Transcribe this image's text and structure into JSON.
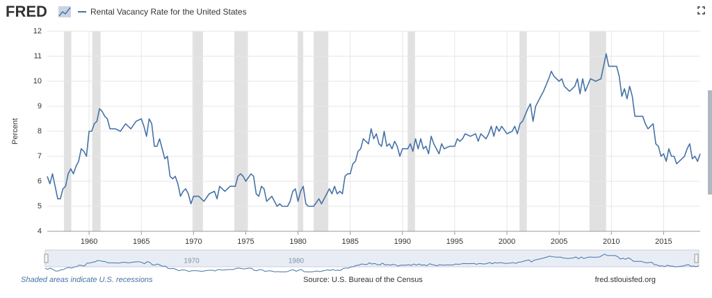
{
  "logo": "FRED",
  "chart_data": {
    "type": "line",
    "legend": "Rental Vacancy Rate for the United States",
    "ylabel": "Percent",
    "x": [
      1956.0,
      1956.25,
      1956.5,
      1956.75,
      1957.0,
      1957.25,
      1957.5,
      1957.75,
      1958.0,
      1958.25,
      1958.5,
      1958.75,
      1959.0,
      1959.25,
      1959.5,
      1959.75,
      1960.0,
      1960.25,
      1960.5,
      1960.75,
      1961.0,
      1961.25,
      1961.5,
      1961.75,
      1962.0,
      1962.5,
      1963.0,
      1963.5,
      1964.0,
      1964.5,
      1965.0,
      1965.25,
      1965.5,
      1965.75,
      1966.0,
      1966.25,
      1966.5,
      1966.75,
      1967.0,
      1967.25,
      1967.5,
      1967.75,
      1968.0,
      1968.25,
      1968.5,
      1968.75,
      1969.0,
      1969.25,
      1969.5,
      1969.75,
      1970.0,
      1970.5,
      1971.0,
      1971.5,
      1972.0,
      1972.25,
      1972.5,
      1973.0,
      1973.5,
      1974.0,
      1974.25,
      1974.5,
      1974.75,
      1975.0,
      1975.5,
      1975.75,
      1976.0,
      1976.25,
      1976.5,
      1976.75,
      1977.0,
      1977.5,
      1978.0,
      1978.25,
      1978.5,
      1979.0,
      1979.25,
      1979.5,
      1979.75,
      1980.0,
      1980.25,
      1980.5,
      1980.75,
      1981.0,
      1981.5,
      1982.0,
      1982.25,
      1982.5,
      1983.0,
      1983.25,
      1983.5,
      1983.75,
      1984.0,
      1984.25,
      1984.5,
      1984.75,
      1985.0,
      1985.25,
      1985.5,
      1985.75,
      1986.0,
      1986.25,
      1986.5,
      1986.75,
      1987.0,
      1987.25,
      1987.5,
      1987.75,
      1988.0,
      1988.25,
      1988.5,
      1988.75,
      1989.0,
      1989.25,
      1989.5,
      1989.75,
      1990.0,
      1990.5,
      1990.75,
      1991.0,
      1991.25,
      1991.5,
      1991.75,
      1992.0,
      1992.25,
      1992.5,
      1992.75,
      1993.0,
      1993.25,
      1993.5,
      1993.75,
      1994.0,
      1994.5,
      1995.0,
      1995.25,
      1995.5,
      1995.75,
      1996.0,
      1996.5,
      1997.0,
      1997.25,
      1997.5,
      1998.0,
      1998.25,
      1998.5,
      1998.75,
      1999.0,
      1999.25,
      1999.5,
      2000.0,
      2000.5,
      2000.75,
      2001.0,
      2001.25,
      2001.5,
      2002.0,
      2002.25,
      2002.5,
      2002.75,
      2003.0,
      2003.5,
      2004.0,
      2004.25,
      2004.5,
      2005.0,
      2005.25,
      2005.5,
      2006.0,
      2006.5,
      2006.75,
      2007.0,
      2007.25,
      2007.5,
      2008.0,
      2008.5,
      2009.0,
      2009.5,
      2009.75,
      2010.5,
      2010.75,
      2011.0,
      2011.25,
      2011.5,
      2011.75,
      2012.0,
      2012.25,
      2012.5,
      2013.0,
      2013.25,
      2013.5,
      2013.75,
      2014.0,
      2014.25,
      2014.5,
      2014.75,
      2015.0,
      2015.25,
      2015.5,
      2015.75,
      2016.0,
      2016.25,
      2016.5,
      2016.75,
      2017.0,
      2017.25,
      2017.5,
      2017.75,
      2018.0,
      2018.25,
      2018.5
    ],
    "series": [
      {
        "name": "Rental Vacancy Rate for the United States",
        "color": "#4572a7",
        "values": [
          6.2,
          5.9,
          6.3,
          5.8,
          5.3,
          5.3,
          5.7,
          5.8,
          6.3,
          6.5,
          6.3,
          6.6,
          6.8,
          7.3,
          7.2,
          7.0,
          8.0,
          8.0,
          8.3,
          8.4,
          8.9,
          8.8,
          8.6,
          8.5,
          8.1,
          8.1,
          8.0,
          8.3,
          8.1,
          8.4,
          8.5,
          8.2,
          7.8,
          8.5,
          8.3,
          7.4,
          7.4,
          7.7,
          7.3,
          6.9,
          7.0,
          6.2,
          6.1,
          6.2,
          5.9,
          5.4,
          5.6,
          5.7,
          5.5,
          5.1,
          5.4,
          5.4,
          5.2,
          5.5,
          5.6,
          5.3,
          5.8,
          5.6,
          5.8,
          5.8,
          6.2,
          6.3,
          6.2,
          6.0,
          6.3,
          6.2,
          5.5,
          5.4,
          5.8,
          5.7,
          5.2,
          5.4,
          5.0,
          5.1,
          5.0,
          5.0,
          5.2,
          5.6,
          5.7,
          5.2,
          5.6,
          5.8,
          5.1,
          5.0,
          5.0,
          5.3,
          5.1,
          5.3,
          5.7,
          5.5,
          5.8,
          5.5,
          5.6,
          5.5,
          6.2,
          6.3,
          6.3,
          6.7,
          6.8,
          7.2,
          7.3,
          7.7,
          7.6,
          7.5,
          8.1,
          7.7,
          7.9,
          7.5,
          7.4,
          8.0,
          7.4,
          7.5,
          7.3,
          7.6,
          7.4,
          7.0,
          7.3,
          7.3,
          7.5,
          7.2,
          7.7,
          7.3,
          7.7,
          7.3,
          7.4,
          7.1,
          7.8,
          7.5,
          7.3,
          7.1,
          7.5,
          7.3,
          7.4,
          7.4,
          7.7,
          7.6,
          7.7,
          7.9,
          7.8,
          7.9,
          7.6,
          7.9,
          7.7,
          7.9,
          8.2,
          7.8,
          8.2,
          8.0,
          8.2,
          7.9,
          8.0,
          8.2,
          7.9,
          8.3,
          8.4,
          8.9,
          9.1,
          8.4,
          9.0,
          9.2,
          9.6,
          10.1,
          10.4,
          10.2,
          10.0,
          10.1,
          9.8,
          9.6,
          9.8,
          10.1,
          9.5,
          10.1,
          9.6,
          10.1,
          10.0,
          10.1,
          11.1,
          10.6,
          10.6,
          10.2,
          9.4,
          9.7,
          9.3,
          9.8,
          9.4,
          8.6,
          8.6,
          8.6,
          8.3,
          8.1,
          8.2,
          8.3,
          7.5,
          7.4,
          7.0,
          7.1,
          6.8,
          7.3,
          7.0,
          7.0,
          6.7,
          6.8,
          6.9,
          7.0,
          7.3,
          7.5,
          6.9,
          7.0,
          6.8,
          7.1
        ]
      }
    ],
    "xlim": [
      1956,
      2018.5
    ],
    "xticks": [
      1960,
      1965,
      1970,
      1975,
      1980,
      1985,
      1990,
      1995,
      2000,
      2005,
      2010,
      2015
    ],
    "ylim": [
      4,
      12
    ],
    "yticks": [
      4,
      5,
      6,
      7,
      8,
      9,
      10,
      11,
      12
    ],
    "grid": true,
    "recession_color": "#e1e1e1",
    "recessions": [
      {
        "start": 1957.6,
        "end": 1958.3
      },
      {
        "start": 1960.3,
        "end": 1961.1
      },
      {
        "start": 1969.9,
        "end": 1970.9
      },
      {
        "start": 1973.9,
        "end": 1975.2
      },
      {
        "start": 1980.0,
        "end": 1980.5
      },
      {
        "start": 1981.5,
        "end": 1982.9
      },
      {
        "start": 1990.5,
        "end": 1991.2
      },
      {
        "start": 2001.2,
        "end": 2001.9
      },
      {
        "start": 2007.9,
        "end": 2009.5
      }
    ],
    "navigator_ticks": [
      1970,
      1980
    ],
    "footer": {
      "note": "Shaded areas indicate U.S. recessions",
      "source": "Source: U.S. Bureau of the Census",
      "site": "fred.stlouisfed.org"
    }
  }
}
